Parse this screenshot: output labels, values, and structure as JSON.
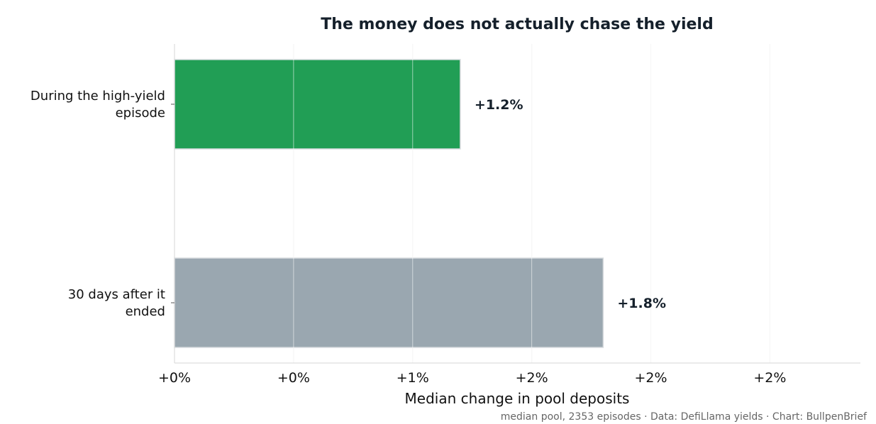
{
  "chart_data": {
    "type": "bar",
    "orientation": "horizontal",
    "title": "The money does not actually chase the yield",
    "xlabel": "Median change in pool deposits",
    "ylabel": "",
    "categories": [
      "During the high-yield episode",
      "30 days after it ended"
    ],
    "category_lines": [
      [
        "During the high-yield",
        "episode"
      ],
      [
        "30 days after it",
        "ended"
      ]
    ],
    "values": [
      1.2,
      1.8
    ],
    "value_labels": [
      "+1.2%",
      "+1.8%"
    ],
    "bar_colors": [
      "#219e55",
      "#9aa7b0"
    ],
    "xlim": [
      0,
      2.88
    ],
    "xticks": [
      0,
      0.5,
      1.0,
      1.5,
      2.0,
      2.5
    ],
    "xtick_labels": [
      "+0%",
      "+0%",
      "+1%",
      "+2%",
      "+2%",
      "+2%"
    ],
    "grid": "x",
    "legend": "none",
    "caption": "median pool, 2353 episodes · Data: DefiLlama yields · Chart: BullpenBrief"
  }
}
